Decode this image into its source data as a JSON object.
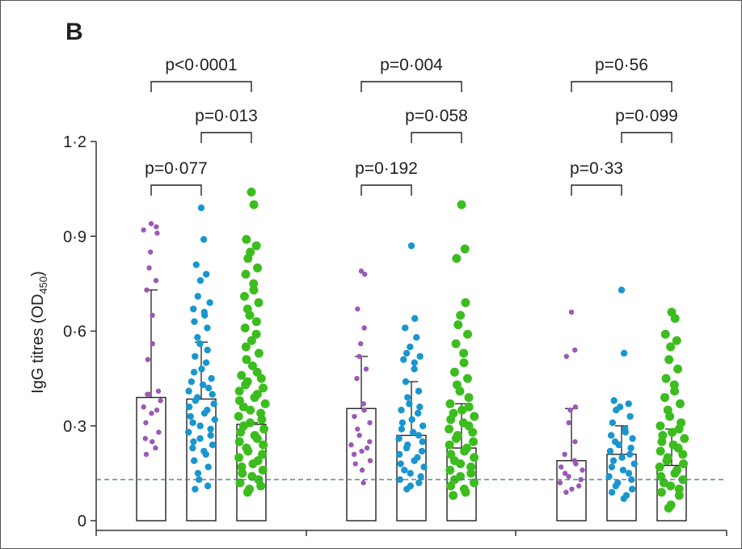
{
  "panel_label": "B",
  "chart_data": {
    "type": "scatter",
    "title": "",
    "xlabel": "",
    "ylabel": "IgG titres (OD",
    "ylabel_sub": "450",
    "ylabel_close": ")",
    "ylim": [
      0,
      1.2
    ],
    "yticks": [
      0,
      0.3,
      0.6,
      0.9,
      1.2
    ],
    "ytick_labels": [
      "0",
      "0·3",
      "0·6",
      "0·9",
      "1·2"
    ],
    "threshold": 0.13,
    "colors": {
      "purple": "#9b59b6",
      "blue": "#1a96cf",
      "green": "#3cbd1e",
      "axis": "#333333",
      "threshold": "#557799"
    },
    "groups": [
      {
        "bars": [
          {
            "color": "purple",
            "mean": 0.39,
            "sd_high": 0.73,
            "points": [
              0.94,
              0.93,
              0.92,
              0.91,
              0.85,
              0.8,
              0.76,
              0.73,
              0.65,
              0.56,
              0.51,
              0.41,
              0.4,
              0.4,
              0.38,
              0.36,
              0.35,
              0.34,
              0.31,
              0.28,
              0.26,
              0.25,
              0.23,
              0.21
            ]
          },
          {
            "color": "blue",
            "mean": 0.385,
            "sd_high": 0.565,
            "points": [
              0.99,
              0.89,
              0.81,
              0.78,
              0.76,
              0.71,
              0.69,
              0.67,
              0.66,
              0.65,
              0.63,
              0.61,
              0.58,
              0.56,
              0.54,
              0.52,
              0.5,
              0.48,
              0.47,
              0.45,
              0.44,
              0.43,
              0.42,
              0.41,
              0.4,
              0.39,
              0.38,
              0.37,
              0.36,
              0.35,
              0.34,
              0.33,
              0.32,
              0.31,
              0.3,
              0.29,
              0.28,
              0.27,
              0.26,
              0.25,
              0.24,
              0.23,
              0.22,
              0.21,
              0.19,
              0.17,
              0.15,
              0.13,
              0.11,
              0.1
            ]
          },
          {
            "color": "green",
            "mean": 0.305,
            "sd_high": 0.31,
            "points": [
              1.04,
              1.0,
              0.89,
              0.87,
              0.85,
              0.83,
              0.8,
              0.78,
              0.75,
              0.73,
              0.71,
              0.69,
              0.67,
              0.65,
              0.63,
              0.61,
              0.59,
              0.57,
              0.55,
              0.53,
              0.51,
              0.49,
              0.47,
              0.46,
              0.45,
              0.44,
              0.43,
              0.42,
              0.41,
              0.4,
              0.39,
              0.38,
              0.37,
              0.36,
              0.35,
              0.34,
              0.33,
              0.32,
              0.31,
              0.3,
              0.29,
              0.28,
              0.27,
              0.26,
              0.25,
              0.24,
              0.23,
              0.22,
              0.21,
              0.2,
              0.19,
              0.18,
              0.17,
              0.16,
              0.15,
              0.14,
              0.13,
              0.12,
              0.11,
              0.1,
              0.09
            ]
          }
        ],
        "brackets": [
          {
            "from": 0,
            "to": 1,
            "label": "p=0·077"
          },
          {
            "from": 1,
            "to": 2,
            "label": "p=0·013"
          },
          {
            "from": 0,
            "to": 2,
            "label": "p<0·0001"
          }
        ]
      },
      {
        "bars": [
          {
            "color": "purple",
            "mean": 0.355,
            "sd_high": 0.52,
            "points": [
              0.79,
              0.78,
              0.67,
              0.61,
              0.56,
              0.52,
              0.48,
              0.45,
              0.37,
              0.35,
              0.33,
              0.31,
              0.29,
              0.27,
              0.25,
              0.24,
              0.23,
              0.22,
              0.21,
              0.19,
              0.18,
              0.16,
              0.12
            ]
          },
          {
            "color": "blue",
            "mean": 0.27,
            "sd_high": 0.44,
            "points": [
              0.87,
              0.64,
              0.61,
              0.58,
              0.55,
              0.53,
              0.52,
              0.51,
              0.5,
              0.48,
              0.44,
              0.41,
              0.39,
              0.37,
              0.36,
              0.35,
              0.34,
              0.32,
              0.31,
              0.3,
              0.29,
              0.28,
              0.27,
              0.26,
              0.25,
              0.24,
              0.23,
              0.22,
              0.21,
              0.2,
              0.19,
              0.18,
              0.17,
              0.16,
              0.15,
              0.14,
              0.13,
              0.12,
              0.11,
              0.1
            ]
          },
          {
            "color": "green",
            "mean": 0.23,
            "sd_high": 0.37,
            "points": [
              1.0,
              0.86,
              0.83,
              0.69,
              0.65,
              0.62,
              0.59,
              0.56,
              0.53,
              0.5,
              0.47,
              0.45,
              0.43,
              0.41,
              0.39,
              0.37,
              0.36,
              0.35,
              0.34,
              0.33,
              0.32,
              0.31,
              0.3,
              0.29,
              0.28,
              0.27,
              0.26,
              0.25,
              0.24,
              0.23,
              0.22,
              0.21,
              0.2,
              0.19,
              0.18,
              0.17,
              0.16,
              0.15,
              0.14,
              0.13,
              0.12,
              0.11,
              0.1,
              0.09,
              0.08
            ]
          }
        ],
        "brackets": [
          {
            "from": 0,
            "to": 1,
            "label": "p=0·192"
          },
          {
            "from": 1,
            "to": 2,
            "label": "p=0·058"
          },
          {
            "from": 0,
            "to": 2,
            "label": "p=0·004"
          }
        ]
      },
      {
        "bars": [
          {
            "color": "purple",
            "mean": 0.19,
            "sd_high": 0.355,
            "points": [
              0.66,
              0.54,
              0.52,
              0.36,
              0.35,
              0.31,
              0.25,
              0.21,
              0.19,
              0.18,
              0.17,
              0.16,
              0.15,
              0.14,
              0.13,
              0.12,
              0.11,
              0.1,
              0.09
            ]
          },
          {
            "color": "blue",
            "mean": 0.21,
            "sd_high": 0.3,
            "points": [
              0.73,
              0.53,
              0.38,
              0.37,
              0.36,
              0.35,
              0.33,
              0.31,
              0.29,
              0.28,
              0.27,
              0.26,
              0.25,
              0.24,
              0.23,
              0.22,
              0.21,
              0.2,
              0.19,
              0.18,
              0.17,
              0.16,
              0.15,
              0.14,
              0.13,
              0.12,
              0.11,
              0.1,
              0.09,
              0.08,
              0.07
            ]
          },
          {
            "color": "green",
            "mean": 0.175,
            "sd_high": 0.29,
            "points": [
              0.66,
              0.64,
              0.59,
              0.57,
              0.55,
              0.51,
              0.48,
              0.45,
              0.43,
              0.41,
              0.39,
              0.37,
              0.35,
              0.33,
              0.31,
              0.3,
              0.29,
              0.28,
              0.27,
              0.26,
              0.25,
              0.24,
              0.23,
              0.22,
              0.21,
              0.2,
              0.19,
              0.18,
              0.17,
              0.16,
              0.15,
              0.14,
              0.13,
              0.12,
              0.11,
              0.1,
              0.09,
              0.08,
              0.05,
              0.04
            ]
          }
        ],
        "brackets": [
          {
            "from": 0,
            "to": 1,
            "label": "p=0·33"
          },
          {
            "from": 1,
            "to": 2,
            "label": "p=0·099"
          },
          {
            "from": 0,
            "to": 2,
            "label": "p=0·56"
          }
        ]
      }
    ]
  }
}
